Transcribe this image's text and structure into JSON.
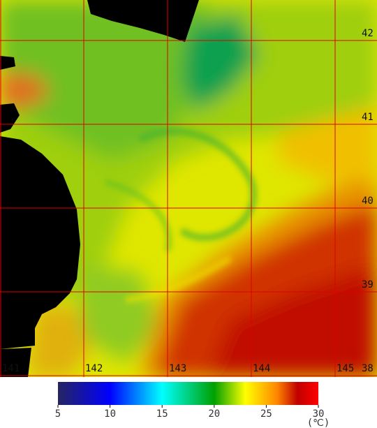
{
  "map": {
    "lon_ticks": [
      141,
      142,
      143,
      144,
      145
    ],
    "lat_ticks": [
      38,
      39,
      40,
      41,
      42
    ],
    "grid_color": "#e00000"
  },
  "colorbar": {
    "lim": [
      5,
      30
    ],
    "ticks": [
      5,
      10,
      15,
      20,
      25,
      30
    ],
    "unit": "(℃)",
    "stops": [
      {
        "value": 5,
        "color": "#252560"
      },
      {
        "value": 10,
        "color": "#0000ff"
      },
      {
        "value": 15,
        "color": "#00ffff"
      },
      {
        "value": 20,
        "color": "#00a000"
      },
      {
        "value": 23,
        "color": "#ffff00"
      },
      {
        "value": 26,
        "color": "#ff8800"
      },
      {
        "value": 28,
        "color": "#c00000"
      },
      {
        "value": 30,
        "color": "#ff0000"
      }
    ]
  }
}
